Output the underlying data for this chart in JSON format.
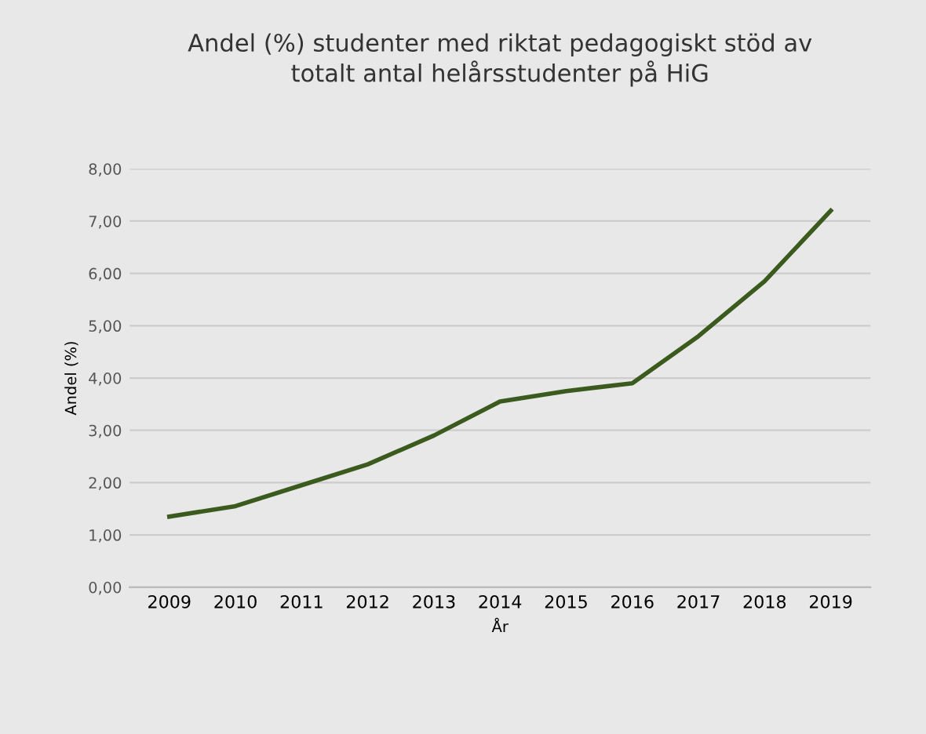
{
  "chart_data": {
    "type": "line",
    "title": "Andel (%) studenter med riktat pedagogiskt stöd av\ntotalt antal helårsstudenter på HiG",
    "xlabel": "År",
    "ylabel": "Andel (%)",
    "categories": [
      "2009",
      "2010",
      "2011",
      "2012",
      "2013",
      "2014",
      "2015",
      "2016",
      "2017",
      "2018",
      "2019"
    ],
    "series": [
      {
        "color": "#3a5a1e",
        "values": [
          1.35,
          1.55,
          1.95,
          2.35,
          2.9,
          3.55,
          3.75,
          3.9,
          4.8,
          5.85,
          7.2
        ]
      }
    ],
    "ylim": [
      0,
      8
    ],
    "yticks": [
      {
        "value": 0,
        "label": "0,00"
      },
      {
        "value": 1,
        "label": "1,00"
      },
      {
        "value": 2,
        "label": "2,00"
      },
      {
        "value": 3,
        "label": "3,00"
      },
      {
        "value": 4,
        "label": "4,00"
      },
      {
        "value": 5,
        "label": "5,00"
      },
      {
        "value": 6,
        "label": "6,00"
      },
      {
        "value": 7,
        "label": "7,00"
      },
      {
        "value": 8,
        "label": "8,00"
      }
    ],
    "grid": "y",
    "legend": false
  }
}
